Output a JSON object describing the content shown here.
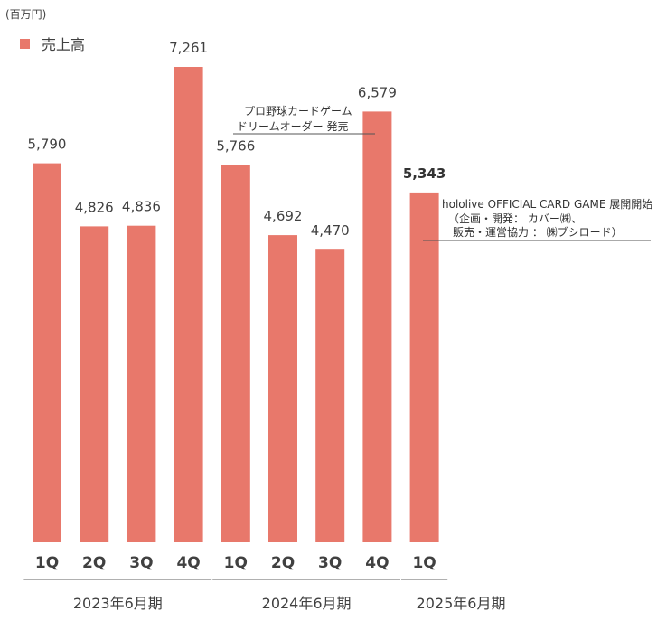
{
  "chart_data": {
    "type": "bar",
    "unit_label": "(百万円)",
    "legend": [
      {
        "name": "売上高",
        "color": "#E8786B"
      }
    ],
    "series": [
      {
        "name": "売上高",
        "color": "#E8786B",
        "values": [
          5790,
          4826,
          4836,
          7261,
          5766,
          4692,
          4470,
          6579,
          5343
        ],
        "value_labels": [
          "5,790",
          "4,826",
          "4,836",
          "7,261",
          "5,766",
          "4,692",
          "4,470",
          "6,579",
          "5,343"
        ]
      }
    ],
    "categories": [
      "1Q",
      "2Q",
      "3Q",
      "4Q",
      "1Q",
      "2Q",
      "3Q",
      "4Q",
      "1Q"
    ],
    "highlight_index": 8,
    "ylim": [
      0,
      7800
    ],
    "grid": false,
    "groups": [
      {
        "label": "2023年6月期",
        "start": 0,
        "end": 3
      },
      {
        "label": "2024年6月期",
        "start": 4,
        "end": 7
      },
      {
        "label": "2025年6月期",
        "start": 8,
        "end": 8
      }
    ],
    "annotations": [
      {
        "lines": [
          "プロ野球カードゲーム",
          "ドリームオーダー 発売"
        ],
        "bar_index": 7
      },
      {
        "lines": [
          "hololive OFFICIAL CARD GAME 展開開始",
          "（企画・開発： カバー㈱、",
          "販売・運営協力 ： ㈱ブシロード）"
        ],
        "bar_index": 8
      }
    ]
  }
}
